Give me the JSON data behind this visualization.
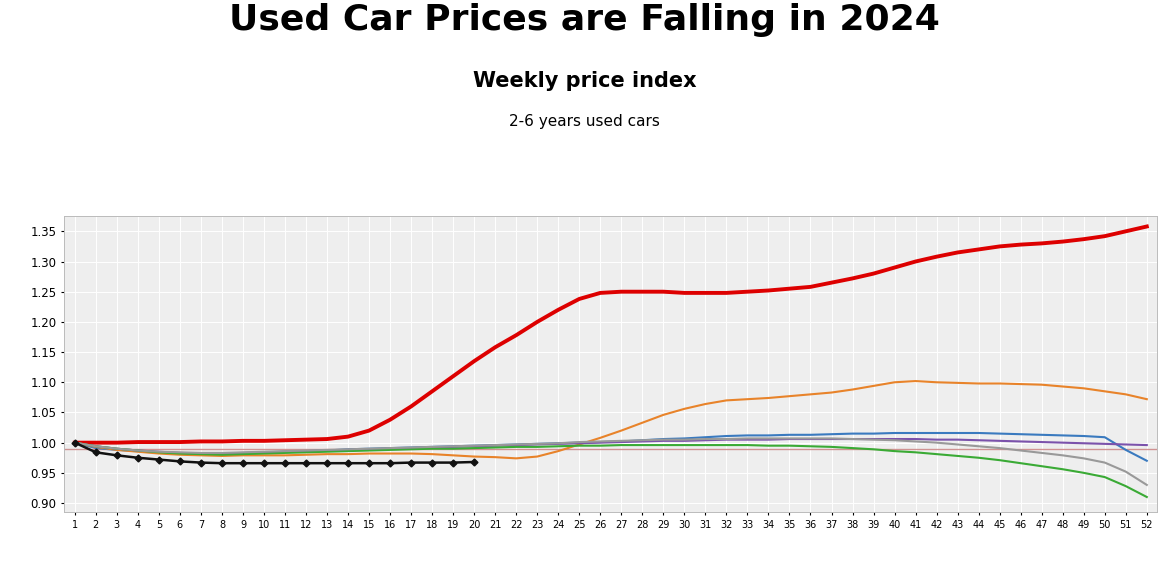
{
  "title": "Used Car Prices are Falling in 2024",
  "subtitle": "Weekly price index",
  "subtitle2": "2-6 years used cars",
  "ylim": [
    0.885,
    1.375
  ],
  "yticks": [
    0.9,
    0.95,
    1.0,
    1.05,
    1.1,
    1.15,
    1.2,
    1.25,
    1.3,
    1.35
  ],
  "weeks": [
    1,
    2,
    3,
    4,
    5,
    6,
    7,
    8,
    9,
    10,
    11,
    12,
    13,
    14,
    15,
    16,
    17,
    18,
    19,
    20,
    21,
    22,
    23,
    24,
    25,
    26,
    27,
    28,
    29,
    30,
    31,
    32,
    33,
    34,
    35,
    36,
    37,
    38,
    39,
    40,
    41,
    42,
    43,
    44,
    45,
    46,
    47,
    48,
    49,
    50,
    51,
    52
  ],
  "series_2019": [
    1.0,
    0.991,
    0.988,
    0.986,
    0.984,
    0.982,
    0.981,
    0.98,
    0.982,
    0.983,
    0.985,
    0.986,
    0.987,
    0.989,
    0.99,
    0.991,
    0.992,
    0.993,
    0.994,
    0.995,
    0.996,
    0.997,
    0.998,
    0.999,
    1.0,
    1.001,
    1.002,
    1.004,
    1.006,
    1.007,
    1.009,
    1.011,
    1.012,
    1.012,
    1.013,
    1.013,
    1.014,
    1.015,
    1.015,
    1.016,
    1.016,
    1.016,
    1.016,
    1.016,
    1.015,
    1.014,
    1.013,
    1.012,
    1.011,
    1.009,
    0.988,
    0.97
  ],
  "series_2020": [
    1.0,
    0.993,
    0.988,
    0.985,
    0.982,
    0.98,
    0.979,
    0.978,
    0.979,
    0.979,
    0.979,
    0.98,
    0.981,
    0.981,
    0.982,
    0.982,
    0.982,
    0.981,
    0.979,
    0.977,
    0.976,
    0.974,
    0.977,
    0.986,
    0.997,
    1.008,
    1.02,
    1.033,
    1.046,
    1.056,
    1.064,
    1.07,
    1.072,
    1.074,
    1.077,
    1.08,
    1.083,
    1.088,
    1.094,
    1.1,
    1.102,
    1.1,
    1.099,
    1.098,
    1.098,
    1.097,
    1.096,
    1.093,
    1.09,
    1.085,
    1.08,
    1.072
  ],
  "series_2021": [
    1.0,
    0.994,
    0.99,
    0.987,
    0.985,
    0.983,
    0.982,
    0.982,
    0.983,
    0.984,
    0.985,
    0.986,
    0.987,
    0.988,
    0.989,
    0.99,
    0.991,
    0.992,
    0.993,
    0.994,
    0.995,
    0.996,
    0.997,
    0.998,
    0.999,
    1.0,
    1.001,
    1.002,
    1.003,
    1.003,
    1.004,
    1.005,
    1.005,
    1.005,
    1.006,
    1.006,
    1.006,
    1.006,
    1.006,
    1.006,
    1.006,
    1.005,
    1.005,
    1.004,
    1.003,
    1.002,
    1.001,
    1.0,
    0.999,
    0.998,
    0.997,
    0.996
  ],
  "series_2022": [
    1.0,
    0.994,
    0.99,
    0.987,
    0.984,
    0.982,
    0.981,
    0.98,
    0.981,
    0.982,
    0.983,
    0.984,
    0.985,
    0.986,
    0.987,
    0.988,
    0.989,
    0.99,
    0.99,
    0.991,
    0.992,
    0.993,
    0.993,
    0.994,
    0.995,
    0.995,
    0.996,
    0.996,
    0.996,
    0.996,
    0.996,
    0.996,
    0.996,
    0.995,
    0.995,
    0.994,
    0.993,
    0.991,
    0.989,
    0.986,
    0.984,
    0.981,
    0.978,
    0.975,
    0.971,
    0.966,
    0.961,
    0.956,
    0.95,
    0.943,
    0.928,
    0.91
  ],
  "series_2023": [
    1.0,
    0.994,
    0.99,
    0.987,
    0.985,
    0.984,
    0.983,
    0.983,
    0.984,
    0.985,
    0.986,
    0.987,
    0.988,
    0.989,
    0.99,
    0.991,
    0.992,
    0.993,
    0.994,
    0.995,
    0.996,
    0.997,
    0.998,
    0.999,
    1.001,
    1.002,
    1.003,
    1.004,
    1.005,
    1.005,
    1.006,
    1.006,
    1.007,
    1.007,
    1.007,
    1.007,
    1.007,
    1.006,
    1.005,
    1.004,
    1.002,
    1.0,
    0.997,
    0.994,
    0.991,
    0.987,
    0.983,
    0.979,
    0.974,
    0.967,
    0.952,
    0.93
  ],
  "series_2024": [
    1.0,
    0.984,
    0.979,
    0.975,
    0.972,
    0.969,
    0.967,
    0.966,
    0.966,
    0.966,
    0.966,
    0.966,
    0.966,
    0.966,
    0.966,
    0.966,
    0.967,
    0.967,
    0.967,
    0.968,
    null,
    null,
    null,
    null,
    null,
    null,
    null,
    null,
    null,
    null,
    null,
    null,
    null,
    null,
    null,
    null,
    null,
    null,
    null,
    null,
    null,
    null,
    null,
    null,
    null,
    null,
    null,
    null,
    null,
    null,
    null,
    null
  ],
  "series_covid_red": [
    1.0,
    1.0,
    1.0,
    1.001,
    1.001,
    1.001,
    1.002,
    1.002,
    1.003,
    1.003,
    1.004,
    1.005,
    1.006,
    1.01,
    1.02,
    1.038,
    1.06,
    1.085,
    1.11,
    1.135,
    1.158,
    1.178,
    1.2,
    1.22,
    1.238,
    1.248,
    1.25,
    1.25,
    1.25,
    1.248,
    1.248,
    1.248,
    1.25,
    1.252,
    1.255,
    1.258,
    1.265,
    1.272,
    1.28,
    1.29,
    1.3,
    1.308,
    1.315,
    1.32,
    1.325,
    1.328,
    1.33,
    1.333,
    1.337,
    1.342,
    1.35,
    1.358
  ],
  "color_2019": "#3a7abf",
  "color_2020": "#e8832a",
  "color_2021": "#7B52AB",
  "color_2022": "#3aaa35",
  "color_2023": "#999999",
  "color_2024": "#111111",
  "color_covid": "#dd0000",
  "color_refline": "#cc8888",
  "background_color": "#ffffff",
  "plot_bg_color": "#eeeeee",
  "grid_color": "#ffffff",
  "title_fontsize": 26,
  "subtitle_fontsize": 15,
  "subtitle2_fontsize": 11
}
